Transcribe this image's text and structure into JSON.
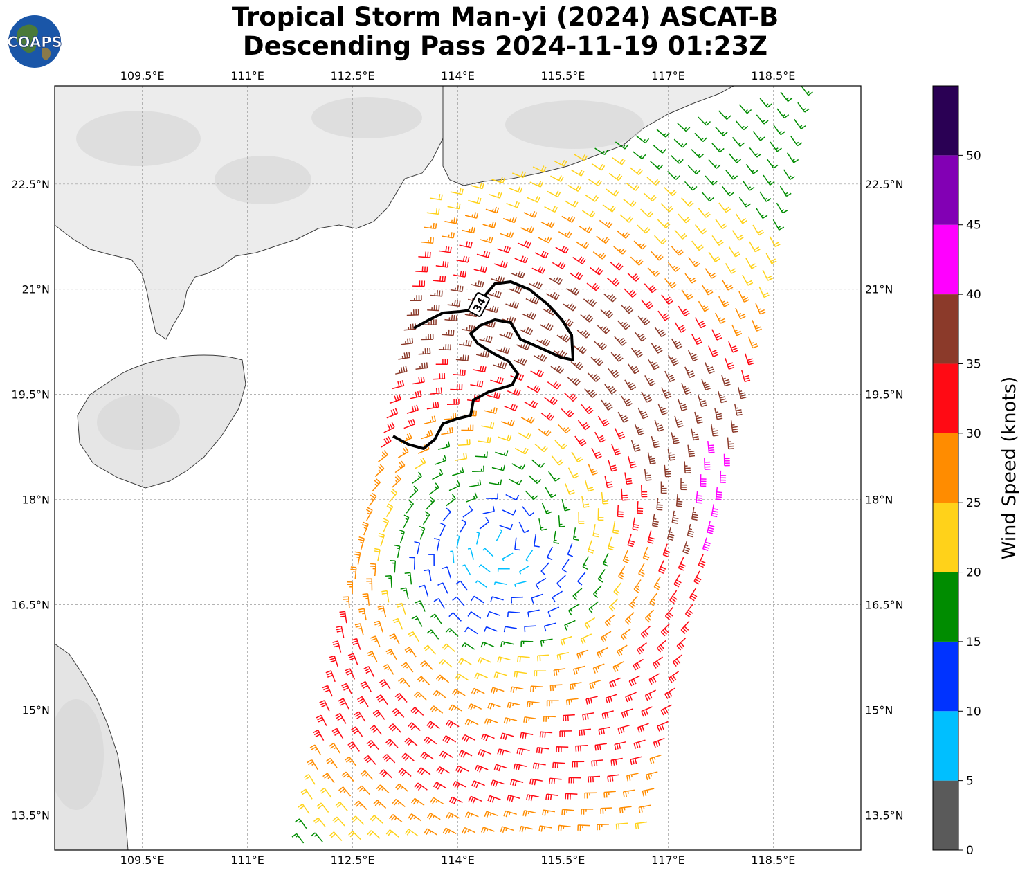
{
  "title": {
    "line1": "Tropical Storm Man-yi (2024) ASCAT-B",
    "line2": "Descending Pass 2024-11-19 01:23Z"
  },
  "logo": {
    "text": "COAPS",
    "icon": "globe-icon"
  },
  "map": {
    "lon_range": [
      108.25,
      119.75
    ],
    "lat_range": [
      13.0,
      23.9
    ],
    "lon_ticks": [
      {
        "value": 109.5,
        "label": "109.5°E"
      },
      {
        "value": 111.0,
        "label": "111°E"
      },
      {
        "value": 112.5,
        "label": "112.5°E"
      },
      {
        "value": 114.0,
        "label": "114°E"
      },
      {
        "value": 115.5,
        "label": "115.5°E"
      },
      {
        "value": 117.0,
        "label": "117°E"
      },
      {
        "value": 118.5,
        "label": "118.5°E"
      }
    ],
    "lat_ticks": [
      {
        "value": 22.5,
        "label": "22.5°N"
      },
      {
        "value": 21.0,
        "label": "21°N"
      },
      {
        "value": 19.5,
        "label": "19.5°N"
      },
      {
        "value": 18.0,
        "label": "18°N"
      },
      {
        "value": 16.5,
        "label": "16.5°N"
      },
      {
        "value": 15.0,
        "label": "15°N"
      },
      {
        "value": 13.5,
        "label": "13.5°N"
      }
    ],
    "grid": true,
    "contour_label": "34",
    "storm_center": {
      "lon": 114.6,
      "lat": 17.4
    },
    "swath_corners": {
      "bottom_left": {
        "lon": 111.8,
        "lat": 13.1
      },
      "bottom_right": {
        "lon": 116.7,
        "lat": 13.4
      },
      "top_right": {
        "lon": 118.9,
        "lat": 23.9
      },
      "top_left": {
        "lon": 113.6,
        "lat": 22.3
      }
    }
  },
  "colorbar": {
    "label": "Wind Speed (knots)",
    "ticks": [
      "0",
      "5",
      "10",
      "15",
      "20",
      "25",
      "30",
      "35",
      "40",
      "45",
      "50"
    ],
    "bins": [
      {
        "min": 0,
        "max": 5,
        "color": "#5a5a5a"
      },
      {
        "min": 5,
        "max": 10,
        "color": "#00bfff"
      },
      {
        "min": 10,
        "max": 15,
        "color": "#0033ff"
      },
      {
        "min": 15,
        "max": 20,
        "color": "#008c00"
      },
      {
        "min": 20,
        "max": 25,
        "color": "#ffd21a"
      },
      {
        "min": 25,
        "max": 30,
        "color": "#ff8c00"
      },
      {
        "min": 30,
        "max": 35,
        "color": "#ff0a14"
      },
      {
        "min": 35,
        "max": 40,
        "color": "#8b3a2a"
      },
      {
        "min": 40,
        "max": 45,
        "color": "#ff00ff"
      },
      {
        "min": 45,
        "max": 50,
        "color": "#8200b4"
      },
      {
        "min": 50,
        "max": 55,
        "color": "#2a0054"
      }
    ]
  }
}
